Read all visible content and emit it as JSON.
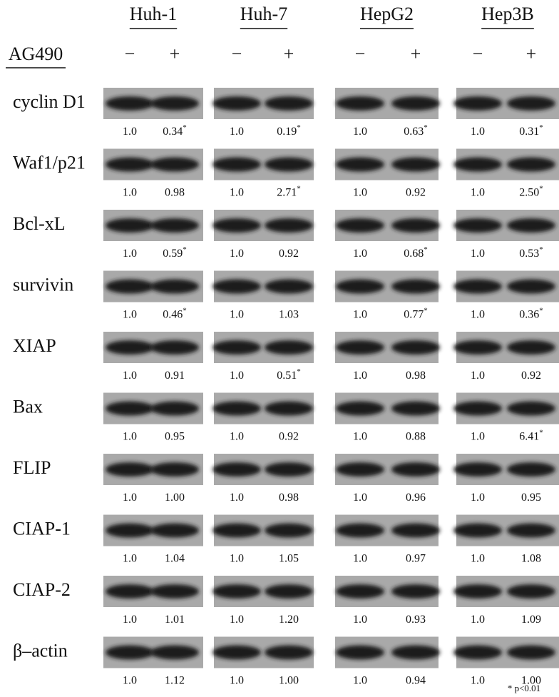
{
  "header": {
    "cell_lines": [
      "Huh-1",
      "Huh-7",
      "HepG2",
      "Hep3B"
    ],
    "treatment": "AG490",
    "signs": [
      "−",
      "+"
    ]
  },
  "rows": [
    {
      "protein": "cyclin D1",
      "values": [
        {
          "value": "1.0"
        },
        {
          "value": "0.34",
          "mark": "*"
        },
        {
          "value": "1.0"
        },
        {
          "value": "0.19",
          "mark": "*"
        },
        {
          "value": "1.0"
        },
        {
          "value": "0.63",
          "mark": "*"
        },
        {
          "value": "1.0"
        },
        {
          "value": "0.31",
          "mark": "*"
        }
      ]
    },
    {
      "protein": "Waf1/p21",
      "values": [
        {
          "value": "1.0"
        },
        {
          "value": "0.98"
        },
        {
          "value": "1.0"
        },
        {
          "value": "2.71",
          "mark": "*"
        },
        {
          "value": "1.0"
        },
        {
          "value": "0.92"
        },
        {
          "value": "1.0"
        },
        {
          "value": "2.50",
          "mark": "*"
        }
      ]
    },
    {
      "protein": "Bcl-xL",
      "values": [
        {
          "value": "1.0"
        },
        {
          "value": "0.59",
          "mark": "*"
        },
        {
          "value": "1.0"
        },
        {
          "value": "0.92"
        },
        {
          "value": "1.0"
        },
        {
          "value": "0.68",
          "mark": "*"
        },
        {
          "value": "1.0"
        },
        {
          "value": "0.53",
          "mark": "*"
        }
      ]
    },
    {
      "protein": "survivin",
      "values": [
        {
          "value": "1.0"
        },
        {
          "value": "0.46",
          "mark": "*"
        },
        {
          "value": "1.0"
        },
        {
          "value": "1.03"
        },
        {
          "value": "1.0"
        },
        {
          "value": "0.77",
          "mark": "*"
        },
        {
          "value": "1.0"
        },
        {
          "value": "0.36",
          "mark": "*"
        }
      ]
    },
    {
      "protein": "XIAP",
      "values": [
        {
          "value": "1.0"
        },
        {
          "value": "0.91"
        },
        {
          "value": "1.0"
        },
        {
          "value": "0.51",
          "mark": "*"
        },
        {
          "value": "1.0"
        },
        {
          "value": "0.98"
        },
        {
          "value": "1.0"
        },
        {
          "value": "0.92"
        }
      ]
    },
    {
      "protein": "Bax",
      "values": [
        {
          "value": "1.0"
        },
        {
          "value": "0.95"
        },
        {
          "value": "1.0"
        },
        {
          "value": "0.92"
        },
        {
          "value": "1.0"
        },
        {
          "value": "0.88"
        },
        {
          "value": "1.0"
        },
        {
          "value": "6.41",
          "mark": "*"
        }
      ]
    },
    {
      "protein": "FLIP",
      "values": [
        {
          "value": "1.0"
        },
        {
          "value": "1.00"
        },
        {
          "value": "1.0"
        },
        {
          "value": "0.98"
        },
        {
          "value": "1.0"
        },
        {
          "value": "0.96"
        },
        {
          "value": "1.0"
        },
        {
          "value": "0.95"
        }
      ]
    },
    {
      "protein": "CIAP-1",
      "values": [
        {
          "value": "1.0"
        },
        {
          "value": "1.04"
        },
        {
          "value": "1.0"
        },
        {
          "value": "1.05"
        },
        {
          "value": "1.0"
        },
        {
          "value": "0.97"
        },
        {
          "value": "1.0"
        },
        {
          "value": "1.08"
        }
      ]
    },
    {
      "protein": "CIAP-2",
      "values": [
        {
          "value": "1.0"
        },
        {
          "value": "1.01"
        },
        {
          "value": "1.0"
        },
        {
          "value": "1.20"
        },
        {
          "value": "1.0"
        },
        {
          "value": "0.93"
        },
        {
          "value": "1.0"
        },
        {
          "value": "1.09"
        }
      ]
    },
    {
      "protein": "β–actin",
      "values": [
        {
          "value": "1.0"
        },
        {
          "value": "1.12"
        },
        {
          "value": "1.0"
        },
        {
          "value": "1.00"
        },
        {
          "value": "1.0"
        },
        {
          "value": "0.94"
        },
        {
          "value": "1.0"
        },
        {
          "value": "1.00"
        }
      ]
    }
  ],
  "footnote": "* p<0.01"
}
